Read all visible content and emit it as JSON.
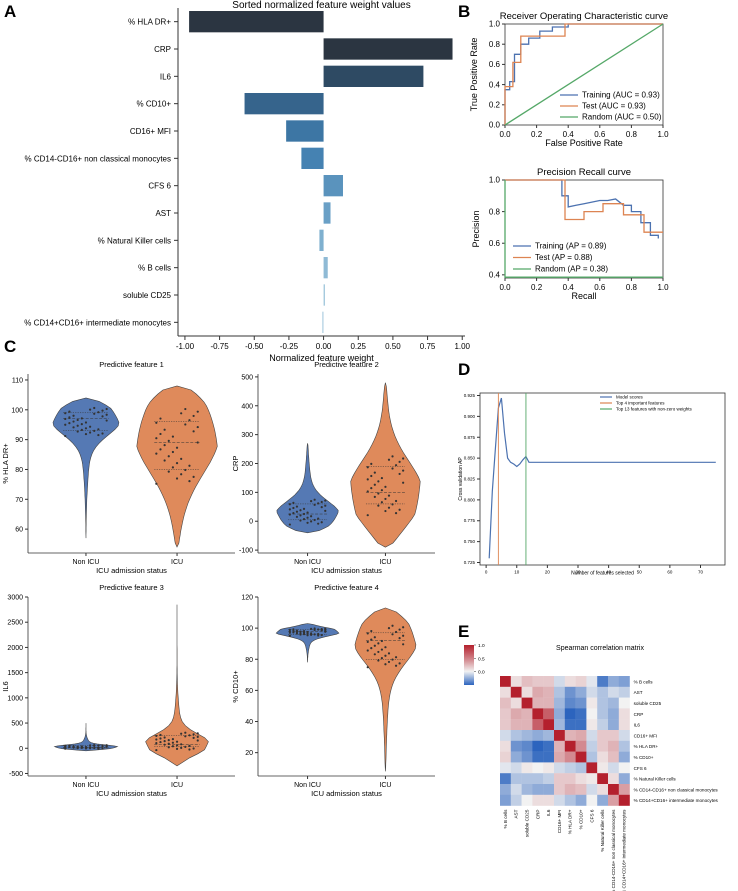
{
  "panels": {
    "A": "A",
    "B": "B",
    "C": "C",
    "D": "D",
    "E": "E"
  },
  "chart_data": [
    {
      "panel": "A",
      "type": "bar",
      "orientation": "horizontal",
      "title": "Sorted normalized feature weight values",
      "xlabel": "Normalized feature weight",
      "xlim": [
        -1.05,
        1.02
      ],
      "xticks": [
        "-1.00",
        "-0.75",
        "-0.50",
        "-0.25",
        "0.00",
        "0.25",
        "0.50",
        "0.75",
        "1.00"
      ],
      "categories": [
        "% HLA DR+",
        "CRP",
        "IL6",
        "% CD10+",
        "CD16+ MFI",
        "% CD14-CD16+ non classical monocytes",
        "CFS 6",
        "AST",
        "% Natural Killer cells",
        "% B cells",
        "soluble CD25",
        "% CD14+CD16+ intermediate monocytes"
      ],
      "values": [
        -0.97,
        0.93,
        0.72,
        -0.57,
        -0.27,
        -0.16,
        0.14,
        0.05,
        -0.03,
        0.03,
        0.01,
        -0.01
      ],
      "colors": [
        "#2b3541",
        "#2b3541",
        "#2e4a63",
        "#36648c",
        "#3d76a4",
        "#4582b2",
        "#5a93bd",
        "#6aa0c6",
        "#7fb0cf",
        "#8fbad5",
        "#a4c8dd",
        "#b8d5e5"
      ]
    },
    {
      "panel": "B-top",
      "type": "line",
      "title": "Receiver Operating Characteristic curve",
      "xlabel": "False Positive Rate",
      "ylabel": "True Positive Rate",
      "xlim": [
        0,
        1
      ],
      "ylim": [
        0,
        1
      ],
      "xticks": [
        "0.0",
        "0.2",
        "0.4",
        "0.6",
        "0.8",
        "1.0"
      ],
      "yticks": [
        "0.0",
        "0.2",
        "0.4",
        "0.6",
        "0.8",
        "1.0"
      ],
      "series": [
        {
          "name": "Training (AUC = 0.93)",
          "color": "#4c72b0",
          "x": [
            0,
            0,
            0.03,
            0.03,
            0.06,
            0.06,
            0.1,
            0.1,
            0.15,
            0.15,
            0.22,
            0.22,
            0.3,
            0.3,
            0.4,
            0.4,
            1
          ],
          "y": [
            0,
            0.35,
            0.35,
            0.43,
            0.43,
            0.7,
            0.7,
            0.8,
            0.8,
            0.86,
            0.86,
            0.93,
            0.93,
            0.97,
            0.97,
            1,
            1
          ]
        },
        {
          "name": "Test (AUC = 0.93)",
          "color": "#dd8452",
          "x": [
            0,
            0,
            0.05,
            0.05,
            0.1,
            0.1,
            0.38,
            0.38,
            1
          ],
          "y": [
            0,
            0.38,
            0.38,
            0.62,
            0.62,
            0.88,
            0.88,
            1,
            1
          ]
        },
        {
          "name": "Random (AUC = 0.50)",
          "color": "#55a868",
          "x": [
            0,
            1
          ],
          "y": [
            0,
            1
          ]
        }
      ]
    },
    {
      "panel": "B-bottom",
      "type": "line",
      "title": "Precision Recall curve",
      "xlabel": "Recall",
      "ylabel": "Precision",
      "xlim": [
        0,
        1
      ],
      "ylim": [
        0.38,
        1.0
      ],
      "xticks": [
        "0.0",
        "0.2",
        "0.4",
        "0.6",
        "0.8",
        "1.0"
      ],
      "yticks": [
        "0.4",
        "0.6",
        "0.8",
        "1.0"
      ],
      "series": [
        {
          "name": "Training (AP = 0.89)",
          "color": "#4c72b0",
          "x": [
            0,
            0.36,
            0.36,
            0.4,
            0.4,
            0.45,
            0.5,
            0.55,
            0.6,
            0.65,
            0.7,
            0.75,
            0.8,
            0.8,
            0.86,
            0.86,
            0.92,
            0.92,
            0.97,
            0.97
          ],
          "y": [
            1,
            1,
            0.9,
            0.9,
            0.83,
            0.84,
            0.85,
            0.86,
            0.87,
            0.87,
            0.88,
            0.84,
            0.84,
            0.8,
            0.8,
            0.73,
            0.73,
            0.65,
            0.65,
            0.63
          ]
        },
        {
          "name": "Test (AP = 0.88)",
          "color": "#dd8452",
          "x": [
            0,
            0.38,
            0.38,
            0.5,
            0.5,
            0.62,
            0.62,
            0.75,
            0.75,
            0.88,
            0.88,
            1
          ],
          "y": [
            1,
            1,
            0.75,
            0.75,
            0.8,
            0.8,
            0.85,
            0.85,
            0.78,
            0.78,
            0.67,
            0.67
          ]
        },
        {
          "name": "Random (AP = 0.38)",
          "color": "#55a868",
          "x": [
            0,
            0,
            1
          ],
          "y": [
            1,
            0.385,
            0.385
          ]
        }
      ]
    },
    {
      "panel": "C",
      "type": "violin",
      "xlabel": "ICU admission status",
      "categories": [
        "Non ICU",
        "ICU"
      ],
      "colors": [
        "#4c72b0",
        "#dd8452"
      ],
      "plots": [
        {
          "title": "Predictive feature 1",
          "ylabel": "% HLA DR+",
          "ylim": [
            52,
            112
          ],
          "yticks": [
            60,
            70,
            80,
            90,
            100,
            110
          ],
          "groups": [
            {
              "min": 57,
              "max": 104,
              "q1": 93,
              "median": 97,
              "q3": 99,
              "mode": 98
            },
            {
              "min": 54,
              "max": 108,
              "q1": 80,
              "median": 89,
              "q3": 96,
              "mode": 95
            }
          ]
        },
        {
          "title": "Predictive feature 2",
          "ylabel": "CRP",
          "ylim": [
            -110,
            510
          ],
          "yticks": [
            -100,
            0,
            100,
            200,
            300,
            400,
            500
          ],
          "groups": [
            {
              "min": -40,
              "max": 270,
              "q1": 5,
              "median": 25,
              "q3": 60,
              "mode": 10
            },
            {
              "min": -90,
              "max": 480,
              "q1": 60,
              "median": 100,
              "q3": 190,
              "mode": 80
            }
          ]
        },
        {
          "title": "Predictive feature 3",
          "ylabel": "IL6",
          "ylim": [
            -550,
            3000
          ],
          "yticks": [
            -500,
            0,
            500,
            1000,
            1500,
            2000,
            2500,
            3000
          ],
          "groups": [
            {
              "min": -50,
              "max": 500,
              "q1": 5,
              "median": 20,
              "q3": 50,
              "mode": 15
            },
            {
              "min": -350,
              "max": 2850,
              "q1": 30,
              "median": 70,
              "q3": 250,
              "mode": 50
            }
          ]
        },
        {
          "title": "Predictive feature 4",
          "ylabel": "% CD10+",
          "ylim": [
            5,
            120
          ],
          "yticks": [
            20,
            40,
            60,
            80,
            100,
            120
          ],
          "groups": [
            {
              "min": 78,
              "max": 103,
              "q1": 96,
              "median": 98,
              "q3": 99,
              "mode": 98
            },
            {
              "min": 8,
              "max": 113,
              "q1": 80,
              "median": 92,
              "q3": 97,
              "mode": 96
            }
          ]
        }
      ]
    },
    {
      "panel": "D",
      "type": "line",
      "xlabel": "Number of features selected",
      "ylabel": "Cross validation AP",
      "xlim": [
        -2,
        78
      ],
      "ylim": [
        0.722,
        0.928
      ],
      "xticks": [
        "0",
        "10",
        "20",
        "30",
        "40",
        "50",
        "60",
        "70"
      ],
      "yticks": [
        "0.725",
        "0.750",
        "0.775",
        "0.800",
        "0.825",
        "0.850",
        "0.875",
        "0.900",
        "0.925"
      ],
      "series": [
        {
          "name": "Model scores",
          "color": "#4c72b0",
          "x": [
            1,
            2,
            3,
            4,
            5,
            6,
            7,
            8,
            9,
            10,
            11,
            12,
            13,
            14,
            15,
            20,
            30,
            40,
            50,
            60,
            70,
            75
          ],
          "y": [
            0.73,
            0.81,
            0.86,
            0.91,
            0.922,
            0.88,
            0.85,
            0.845,
            0.843,
            0.84,
            0.843,
            0.848,
            0.852,
            0.845,
            0.845,
            0.845,
            0.845,
            0.845,
            0.845,
            0.845,
            0.845,
            0.845
          ]
        }
      ],
      "vlines": [
        {
          "name": "Top 4 important features",
          "x": 4,
          "color": "#dd8452"
        },
        {
          "name": "Top 13 features with non-zero weights",
          "x": 13,
          "color": "#55a868"
        }
      ]
    },
    {
      "panel": "E",
      "type": "heatmap",
      "title": "Spearman correlation matrix",
      "colorbar_ticks": [
        "1.0",
        "0.5",
        "0.0"
      ],
      "labels": [
        "% B cells",
        "AST",
        "soluble CD25",
        "CRP",
        "IL6",
        "CD16+ MFI",
        "% HLA DR+",
        "% CD10+",
        "CFS 6",
        "% Natural Killer cells",
        "% CD14-CD16+ non classical monocytes",
        "% CD14+CD16+ intermediate monocytes"
      ],
      "matrix": [
        [
          1.0,
          0.1,
          0.25,
          0.2,
          0.2,
          -0.1,
          0.1,
          0.15,
          -0.05,
          -0.5,
          -0.3,
          -0.35
        ],
        [
          0.1,
          1.0,
          0.1,
          0.35,
          0.3,
          -0.2,
          -0.4,
          -0.3,
          -0.1,
          -0.2,
          -0.1,
          -0.15
        ],
        [
          0.25,
          0.1,
          1.0,
          0.3,
          0.3,
          -0.25,
          -0.45,
          -0.4,
          0.05,
          -0.2,
          -0.25,
          0.0
        ],
        [
          0.2,
          0.35,
          0.3,
          1.0,
          0.7,
          -0.3,
          -0.6,
          -0.55,
          0.0,
          -0.2,
          -0.3,
          0.1
        ],
        [
          0.2,
          0.3,
          0.3,
          0.7,
          1.0,
          -0.25,
          -0.55,
          -0.55,
          0.05,
          -0.15,
          -0.3,
          0.1
        ],
        [
          -0.1,
          -0.2,
          -0.25,
          -0.3,
          -0.25,
          1.0,
          0.3,
          0.35,
          -0.1,
          0.2,
          0.2,
          -0.1
        ],
        [
          0.1,
          -0.4,
          -0.45,
          -0.6,
          -0.55,
          0.3,
          1.0,
          0.5,
          -0.15,
          0.2,
          0.3,
          -0.2
        ],
        [
          0.15,
          -0.3,
          -0.4,
          -0.55,
          -0.55,
          0.35,
          0.5,
          1.0,
          -0.2,
          0.1,
          0.25,
          -0.3
        ],
        [
          -0.05,
          -0.1,
          0.05,
          0.0,
          0.05,
          -0.1,
          -0.15,
          -0.2,
          1.0,
          0.05,
          -0.1,
          0.0
        ],
        [
          -0.5,
          -0.2,
          -0.2,
          -0.2,
          -0.15,
          0.2,
          0.2,
          0.1,
          0.05,
          1.0,
          0.1,
          -0.3
        ],
        [
          -0.3,
          -0.1,
          -0.25,
          -0.3,
          -0.3,
          0.2,
          0.3,
          0.25,
          -0.1,
          0.1,
          1.0,
          0.4
        ],
        [
          -0.35,
          -0.15,
          0.0,
          0.1,
          0.1,
          -0.1,
          -0.2,
          -0.3,
          0.0,
          -0.3,
          0.4,
          1.0
        ]
      ]
    }
  ]
}
